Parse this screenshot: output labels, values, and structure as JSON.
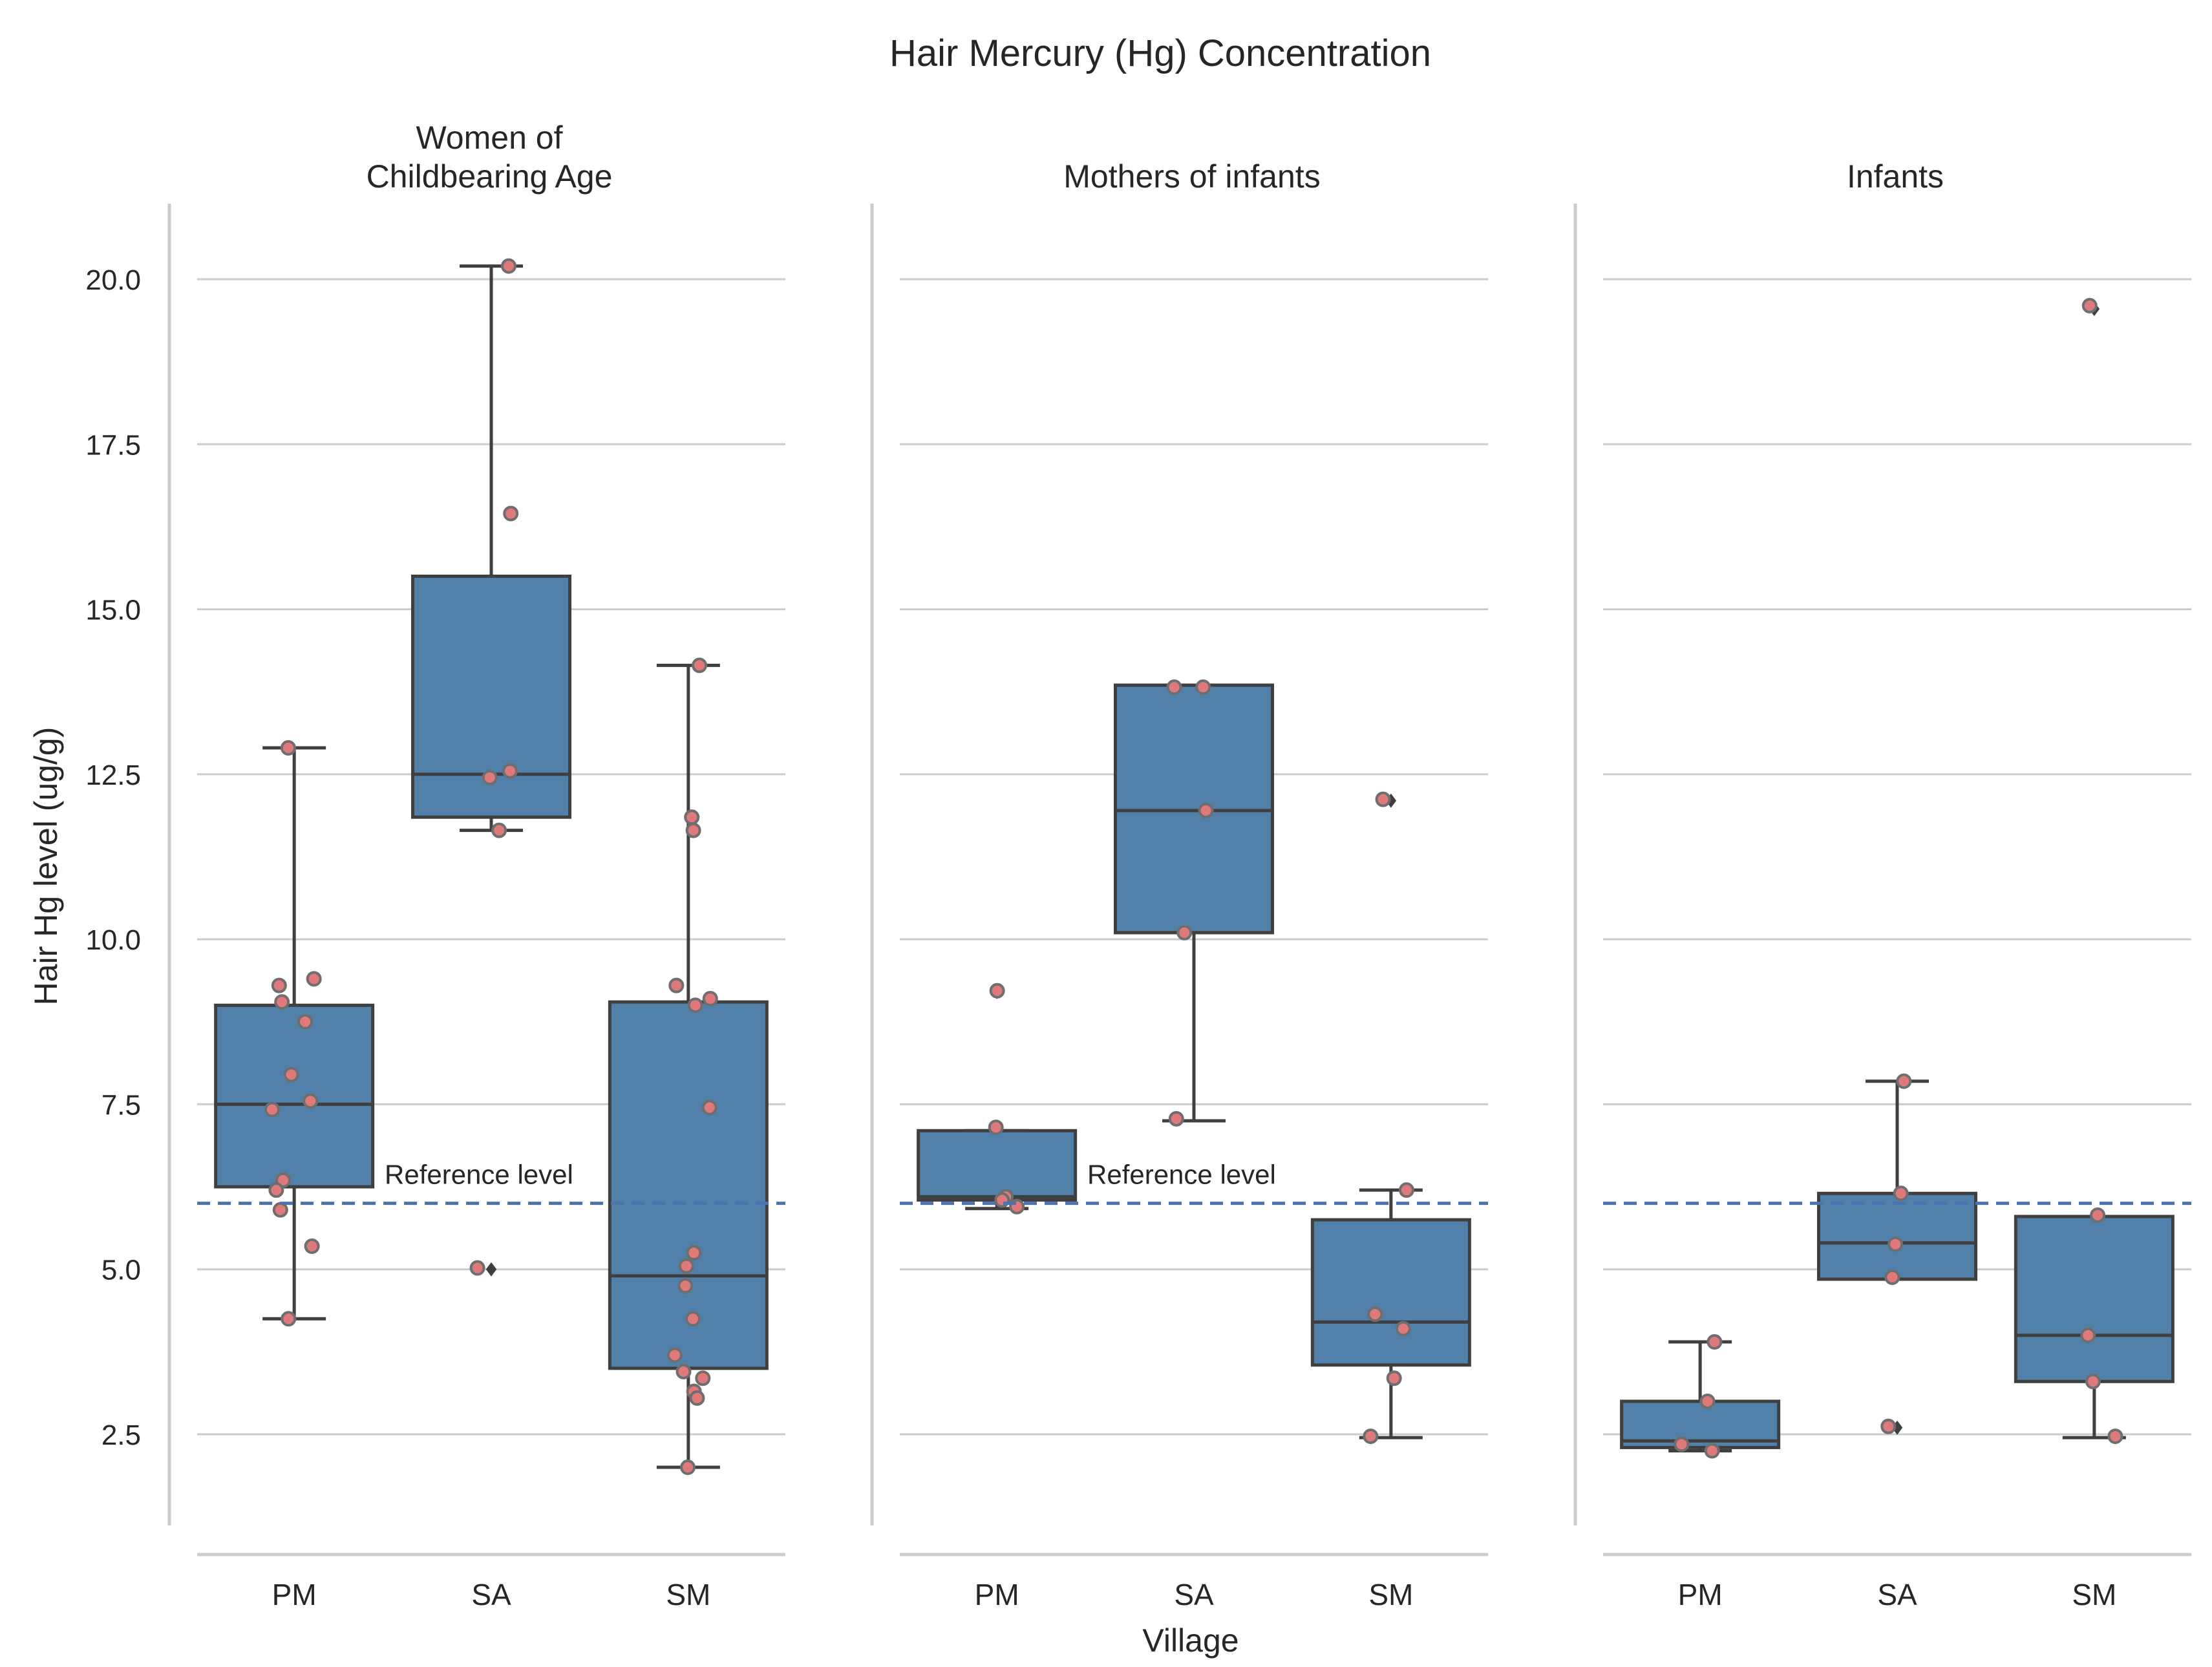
{
  "chart_data": {
    "type": "box",
    "title": "Hair Mercury (Hg) Concentration",
    "xlabel": "Village",
    "ylabel": "Hair Hg level (ug/g)",
    "ylim": [
      1.2,
      21.2
    ],
    "yticks": [
      2.5,
      5.0,
      7.5,
      10.0,
      12.5,
      15.0,
      17.5,
      20.0
    ],
    "ytick_labels": [
      "2.5",
      "5.0",
      "7.5",
      "10.0",
      "12.5",
      "15.0",
      "17.5",
      "20.0"
    ],
    "categories": [
      "PM",
      "SA",
      "SM"
    ],
    "reference": {
      "value": 6.0,
      "label": "Reference level"
    },
    "colors": {
      "box": "#5181ab",
      "line": "#3f3f3f",
      "point": "#e07a7a",
      "point_edge": "#6e6e6e",
      "reference": "#4c72b0",
      "grid": "#cccccc",
      "axis": "#cccccc"
    },
    "panels": [
      {
        "title_lines": [
          "Women of",
          "Childbearing Age"
        ],
        "show_reference_label": true,
        "boxes": [
          {
            "category": "PM",
            "q1": 6.25,
            "median": 7.5,
            "q3": 9.0,
            "whisker_low": 4.25,
            "whisker_high": 12.9,
            "outliers": [],
            "points": [
              12.9,
              9.4,
              9.3,
              9.05,
              8.75,
              7.95,
              7.55,
              7.42,
              6.35,
              6.2,
              5.9,
              5.35,
              4.25
            ]
          },
          {
            "category": "SA",
            "q1": 11.85,
            "median": 12.5,
            "q3": 15.5,
            "whisker_low": 11.65,
            "whisker_high": 20.2,
            "outliers": [
              5.0
            ],
            "points": [
              20.2,
              16.45,
              12.55,
              12.45,
              11.65,
              5.02
            ]
          },
          {
            "category": "SM",
            "q1": 3.5,
            "median": 4.9,
            "q3": 9.05,
            "whisker_low": 2.0,
            "whisker_high": 14.15,
            "outliers": [],
            "points": [
              14.15,
              11.85,
              11.65,
              9.3,
              9.1,
              9.0,
              7.45,
              5.25,
              5.05,
              4.75,
              4.25,
              3.7,
              3.45,
              3.35,
              3.15,
              3.05,
              2.0
            ]
          }
        ]
      },
      {
        "title_lines": [
          "Mothers of infants"
        ],
        "show_reference_label": true,
        "boxes": [
          {
            "category": "PM",
            "q1": 6.05,
            "median": 6.1,
            "q3": 7.1,
            "whisker_low": 5.92,
            "whisker_high": 7.1,
            "outliers": [
              9.2
            ],
            "points": [
              9.22,
              7.15,
              6.1,
              6.05,
              5.95
            ]
          },
          {
            "category": "SA",
            "q1": 10.1,
            "median": 11.95,
            "q3": 13.85,
            "whisker_low": 7.25,
            "whisker_high": 13.85,
            "outliers": [],
            "points": [
              13.82,
              13.82,
              11.95,
              10.1,
              7.28
            ]
          },
          {
            "category": "SM",
            "q1": 3.55,
            "median": 4.2,
            "q3": 5.75,
            "whisker_low": 2.45,
            "whisker_high": 6.2,
            "outliers": [
              12.1
            ],
            "points": [
              12.12,
              6.2,
              4.32,
              4.1,
              3.35,
              2.47
            ]
          }
        ]
      },
      {
        "title_lines": [
          "Infants"
        ],
        "show_reference_label": false,
        "boxes": [
          {
            "category": "PM",
            "q1": 2.3,
            "median": 2.4,
            "q3": 3.0,
            "whisker_low": 2.25,
            "whisker_high": 3.9,
            "outliers": [],
            "points": [
              3.9,
              3.0,
              2.35,
              2.25
            ]
          },
          {
            "category": "SA",
            "q1": 4.85,
            "median": 5.4,
            "q3": 6.15,
            "whisker_low": 4.85,
            "whisker_high": 7.85,
            "outliers": [
              2.6
            ],
            "points": [
              7.85,
              6.15,
              5.38,
              4.88,
              2.62
            ]
          },
          {
            "category": "SM",
            "q1": 3.3,
            "median": 4.0,
            "q3": 5.8,
            "whisker_low": 2.45,
            "whisker_high": 5.8,
            "outliers": [
              19.55
            ],
            "points": [
              19.6,
              5.82,
              4.0,
              3.3,
              2.47
            ]
          }
        ]
      }
    ]
  }
}
